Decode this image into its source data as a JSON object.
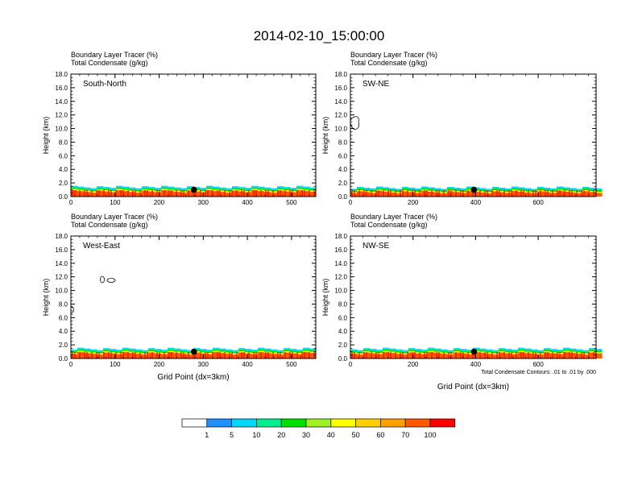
{
  "page": {
    "title": "2014-02-10_15:00:00"
  },
  "panels_common": {
    "label_line1": "Boundary Layer Tracer   (%)",
    "label_line2": "Total Condensate   (g/kg)",
    "ylabel": "Height (km)",
    "xlabel": "Grid Point (dx=3km)",
    "contour_note": "Total Condensate Contours: .01 to .01 by .000"
  },
  "colorbar": {
    "colors": [
      "#ffffff",
      "#1e90ff",
      "#00d8ff",
      "#00f090",
      "#00e000",
      "#a0f028",
      "#ffff00",
      "#ffd000",
      "#ffa000",
      "#ff5a00",
      "#ff0000"
    ],
    "labels": [
      "1",
      "5",
      "10",
      "20",
      "30",
      "40",
      "50",
      "60",
      "70",
      "100"
    ]
  },
  "chart_data": [
    {
      "type": "heatmap",
      "name": "South-North",
      "title": "South-North",
      "xlabel": "",
      "ylabel": "Height (km)",
      "xlim": [
        0,
        555
      ],
      "ylim": [
        0,
        18
      ],
      "xticks": [
        0,
        100,
        200,
        300,
        400,
        500
      ],
      "yticks": [
        0,
        2,
        4,
        6,
        8,
        10,
        12,
        14,
        16,
        18
      ],
      "ytick_labels": [
        "0.0",
        "2.0",
        "4.0",
        "6.0",
        "8.0",
        "10.0",
        "12.0",
        "14.0",
        "16.0",
        "18.0"
      ],
      "bl_top_km": 1.4,
      "marker_x": 279,
      "marker_km": 1.0
    },
    {
      "type": "heatmap",
      "name": "SW-NE",
      "title": "SW-NE",
      "xlabel": "",
      "ylabel": "Height (km)",
      "xlim": [
        0,
        785
      ],
      "ylim": [
        0,
        18
      ],
      "xticks": [
        0,
        200,
        400,
        600
      ],
      "yticks": [
        0,
        2,
        4,
        6,
        8,
        10,
        12,
        14,
        16,
        18
      ],
      "ytick_labels": [
        "0.0",
        "2.0",
        "4.0",
        "6.0",
        "8.0",
        "10.0",
        "12.0",
        "14.0",
        "16.0",
        "18.0"
      ],
      "bl_top_km": 1.3,
      "marker_x": 395,
      "marker_km": 1.0
    },
    {
      "type": "heatmap",
      "name": "West-East",
      "title": "West-East",
      "xlabel": "Grid Point (dx=3km)",
      "ylabel": "Height (km)",
      "xlim": [
        0,
        555
      ],
      "ylim": [
        0,
        18
      ],
      "xticks": [
        0,
        100,
        200,
        300,
        400,
        500
      ],
      "yticks": [
        0,
        2,
        4,
        6,
        8,
        10,
        12,
        14,
        16,
        18
      ],
      "ytick_labels": [
        "0.0",
        "2.0",
        "4.0",
        "6.0",
        "8.0",
        "10.0",
        "12.0",
        "14.0",
        "16.0",
        "18.0"
      ],
      "bl_top_km": 1.4,
      "marker_x": 279,
      "marker_km": 1.0
    },
    {
      "type": "heatmap",
      "name": "NW-SE",
      "title": "NW-SE",
      "xlabel": "Grid Point (dx=3km)",
      "ylabel": "Height (km)",
      "xlim": [
        0,
        785
      ],
      "ylim": [
        0,
        18
      ],
      "xticks": [
        0,
        200,
        400,
        600
      ],
      "yticks": [
        0,
        2,
        4,
        6,
        8,
        10,
        12,
        14,
        16,
        18
      ],
      "ytick_labels": [
        "0.0",
        "2.0",
        "4.0",
        "6.0",
        "8.0",
        "10.0",
        "12.0",
        "14.0",
        "16.0",
        "18.0"
      ],
      "bl_top_km": 1.4,
      "marker_x": 395,
      "marker_km": 1.0
    }
  ]
}
